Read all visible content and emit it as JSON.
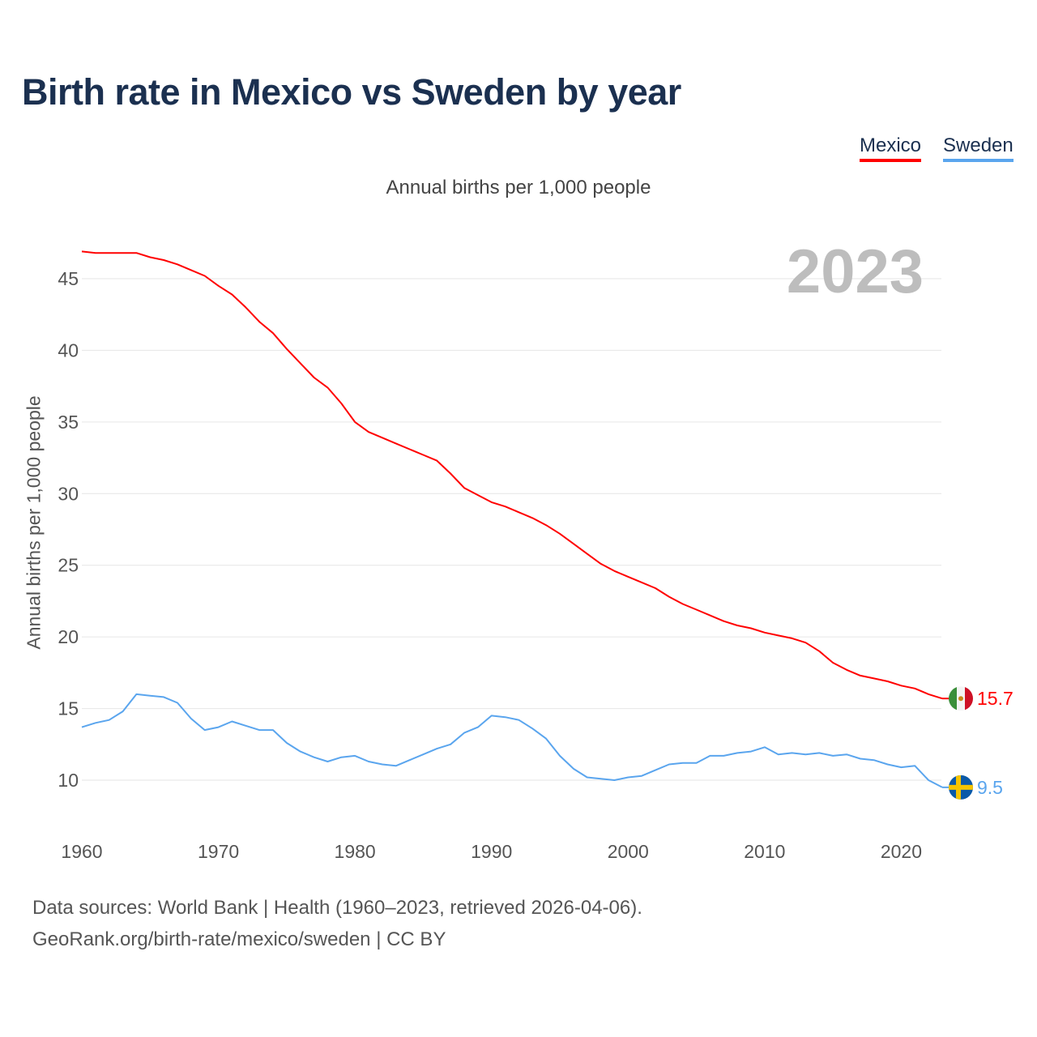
{
  "title": "Birth rate in Mexico vs Sweden by year",
  "subtitle": "Annual births per 1,000 people",
  "footer": {
    "line1": "Data sources: World Bank | Health (1960–2023, retrieved 2026-04-06).",
    "line2": "GeoRank.org/birth-rate/mexico/sweden | CC BY"
  },
  "chart_data": {
    "type": "line",
    "title": "Birth rate in Mexico vs Sweden by year",
    "ylabel": "Annual births per 1,000 people",
    "xlabel": "",
    "current_year_label": "2023",
    "xlim": [
      1960,
      2023
    ],
    "ylim": [
      7,
      47
    ],
    "grid": true,
    "legend_placement": "top-right",
    "x_ticks": [
      "1960",
      "1970",
      "1980",
      "1990",
      "2000",
      "2010",
      "2020"
    ],
    "y_ticks": [
      "10",
      "15",
      "20",
      "25",
      "30",
      "35",
      "40",
      "45"
    ],
    "x": [
      1960,
      1961,
      1962,
      1963,
      1964,
      1965,
      1966,
      1967,
      1968,
      1969,
      1970,
      1971,
      1972,
      1973,
      1974,
      1975,
      1976,
      1977,
      1978,
      1979,
      1980,
      1981,
      1982,
      1983,
      1984,
      1985,
      1986,
      1987,
      1988,
      1989,
      1990,
      1991,
      1992,
      1993,
      1994,
      1995,
      1996,
      1997,
      1998,
      1999,
      2000,
      2001,
      2002,
      2003,
      2004,
      2005,
      2006,
      2007,
      2008,
      2009,
      2010,
      2011,
      2012,
      2013,
      2014,
      2015,
      2016,
      2017,
      2018,
      2019,
      2020,
      2021,
      2022,
      2023
    ],
    "series": [
      {
        "name": "Mexico",
        "color": "#ff0000",
        "end_label": "15.7",
        "values": [
          46.9,
          46.8,
          46.8,
          46.8,
          46.8,
          46.5,
          46.3,
          46.0,
          45.6,
          45.2,
          44.5,
          43.9,
          43.0,
          42.0,
          41.2,
          40.1,
          39.1,
          38.1,
          37.4,
          36.3,
          35.0,
          34.3,
          33.9,
          33.5,
          33.1,
          32.7,
          32.3,
          31.4,
          30.4,
          29.9,
          29.4,
          29.1,
          28.7,
          28.3,
          27.8,
          27.2,
          26.5,
          25.8,
          25.1,
          24.6,
          24.2,
          23.8,
          23.4,
          22.8,
          22.3,
          21.9,
          21.5,
          21.1,
          20.8,
          20.6,
          20.3,
          20.1,
          19.9,
          19.6,
          19.0,
          18.2,
          17.7,
          17.3,
          17.1,
          16.9,
          16.6,
          16.4,
          16.0,
          15.7
        ]
      },
      {
        "name": "Sweden",
        "color": "#5aa5ee",
        "end_label": "9.5",
        "values": [
          13.7,
          14.0,
          14.2,
          14.8,
          16.0,
          15.9,
          15.8,
          15.4,
          14.3,
          13.5,
          13.7,
          14.1,
          13.8,
          13.5,
          13.5,
          12.6,
          12.0,
          11.6,
          11.3,
          11.6,
          11.7,
          11.3,
          11.1,
          11.0,
          11.4,
          11.8,
          12.2,
          12.5,
          13.3,
          13.7,
          14.5,
          14.4,
          14.2,
          13.6,
          12.9,
          11.7,
          10.8,
          10.2,
          10.1,
          10.0,
          10.2,
          10.3,
          10.7,
          11.1,
          11.2,
          11.2,
          11.7,
          11.7,
          11.9,
          12.0,
          12.3,
          11.8,
          11.9,
          11.8,
          11.9,
          11.7,
          11.8,
          11.5,
          11.4,
          11.1,
          10.9,
          11.0,
          10.0,
          9.5
        ]
      }
    ]
  }
}
